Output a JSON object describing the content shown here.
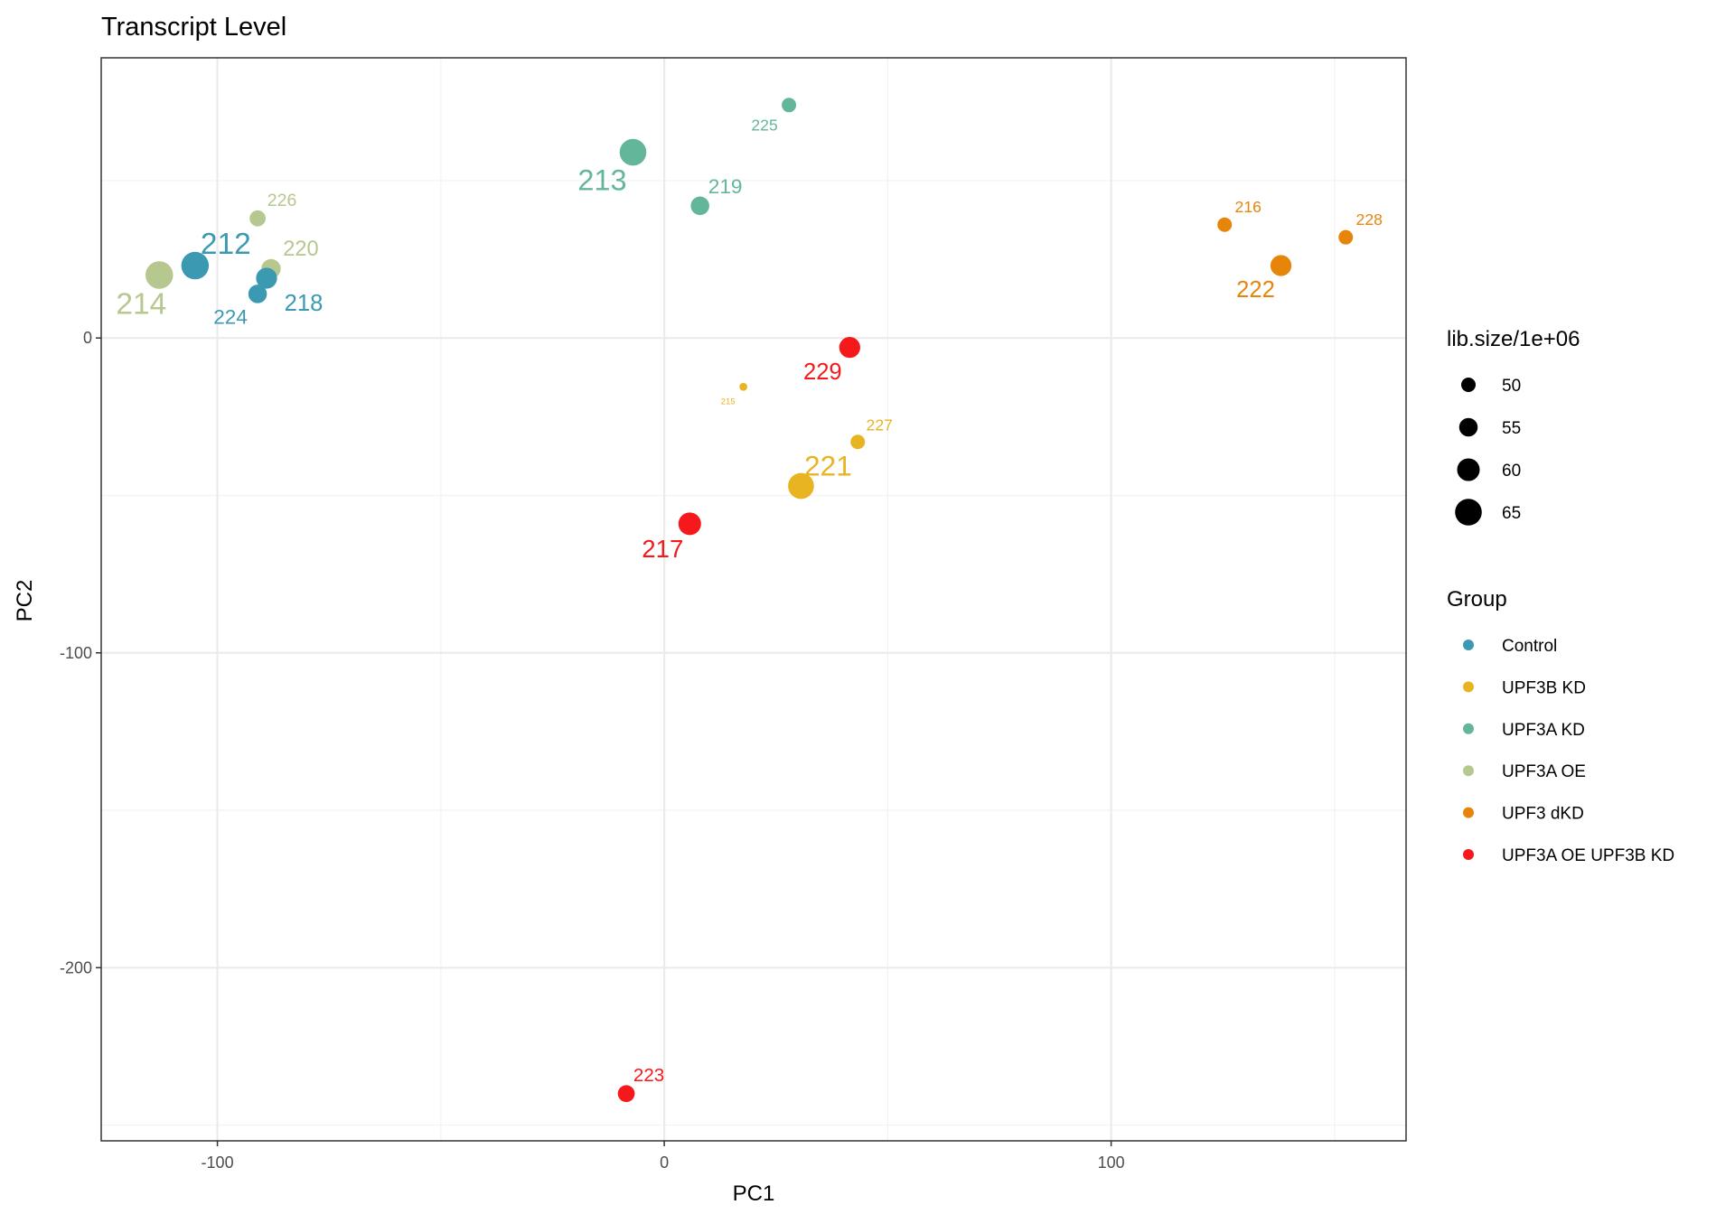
{
  "chart_data": {
    "type": "scatter",
    "title": "Transcript Level",
    "xlabel": "PC1",
    "ylabel": "PC2",
    "xlim": [
      -126,
      166
    ],
    "ylim": [
      -255,
      89
    ],
    "x_ticks": [
      -100,
      0,
      100
    ],
    "y_ticks": [
      0,
      -100,
      -200
    ],
    "grid": true,
    "legend_placement": "right",
    "size_legend": {
      "title": "lib.size/1e+06",
      "values": [
        50,
        55,
        60,
        65
      ]
    },
    "color_legend": {
      "title": "Group",
      "groups": [
        {
          "name": "Control",
          "color": "#3B9AB2"
        },
        {
          "name": "UPF3B KD",
          "color": "#E8B422"
        },
        {
          "name": "UPF3A KD",
          "color": "#64B69B"
        },
        {
          "name": "UPF3A OE",
          "color": "#B6C78F"
        },
        {
          "name": "UPF3 dKD",
          "color": "#E7850B"
        },
        {
          "name": "UPF3A OE UPF3B KD",
          "color": "#F5191C"
        }
      ]
    },
    "points": [
      {
        "label": "225",
        "group": "UPF3A KD",
        "x": 27.9,
        "y": 74,
        "size": 50
      },
      {
        "label": "213",
        "group": "UPF3A KD",
        "x": -7,
        "y": 59,
        "size": 65
      },
      {
        "label": "219",
        "group": "UPF3A KD",
        "x": 8,
        "y": 42,
        "size": 55
      },
      {
        "label": "226",
        "group": "UPF3A OE",
        "x": -91,
        "y": 38,
        "size": 52
      },
      {
        "label": "214",
        "group": "UPF3A OE",
        "x": -113,
        "y": 20,
        "size": 66
      },
      {
        "label": "220",
        "group": "UPF3A OE",
        "x": -88,
        "y": 22,
        "size": 56
      },
      {
        "label": "212",
        "group": "Control",
        "x": -105,
        "y": 23,
        "size": 66
      },
      {
        "label": "218",
        "group": "Control",
        "x": -89,
        "y": 19,
        "size": 58
      },
      {
        "label": "224",
        "group": "Control",
        "x": -91,
        "y": 14,
        "size": 55
      },
      {
        "label": "216",
        "group": "UPF3 dKD",
        "x": 125.4,
        "y": 36,
        "size": 50
      },
      {
        "label": "228",
        "group": "UPF3 dKD",
        "x": 152.5,
        "y": 32,
        "size": 50
      },
      {
        "label": "222",
        "group": "UPF3 dKD",
        "x": 138,
        "y": 23,
        "size": 58
      },
      {
        "label": "229",
        "group": "UPF3A OE UPF3B KD",
        "x": 41.5,
        "y": -3,
        "size": 58
      },
      {
        "label": "217",
        "group": "UPF3A OE UPF3B KD",
        "x": 5.7,
        "y": -59,
        "size": 60
      },
      {
        "label": "223",
        "group": "UPF3A OE UPF3B KD",
        "x": -8.5,
        "y": -240,
        "size": 53
      },
      {
        "label": "215",
        "group": "UPF3B KD",
        "x": 17.7,
        "y": -15.5,
        "size": 42
      },
      {
        "label": "227",
        "group": "UPF3B KD",
        "x": 43.3,
        "y": -33,
        "size": 50
      },
      {
        "label": "221",
        "group": "UPF3B KD",
        "x": 30.6,
        "y": -47,
        "size": 64
      }
    ]
  }
}
